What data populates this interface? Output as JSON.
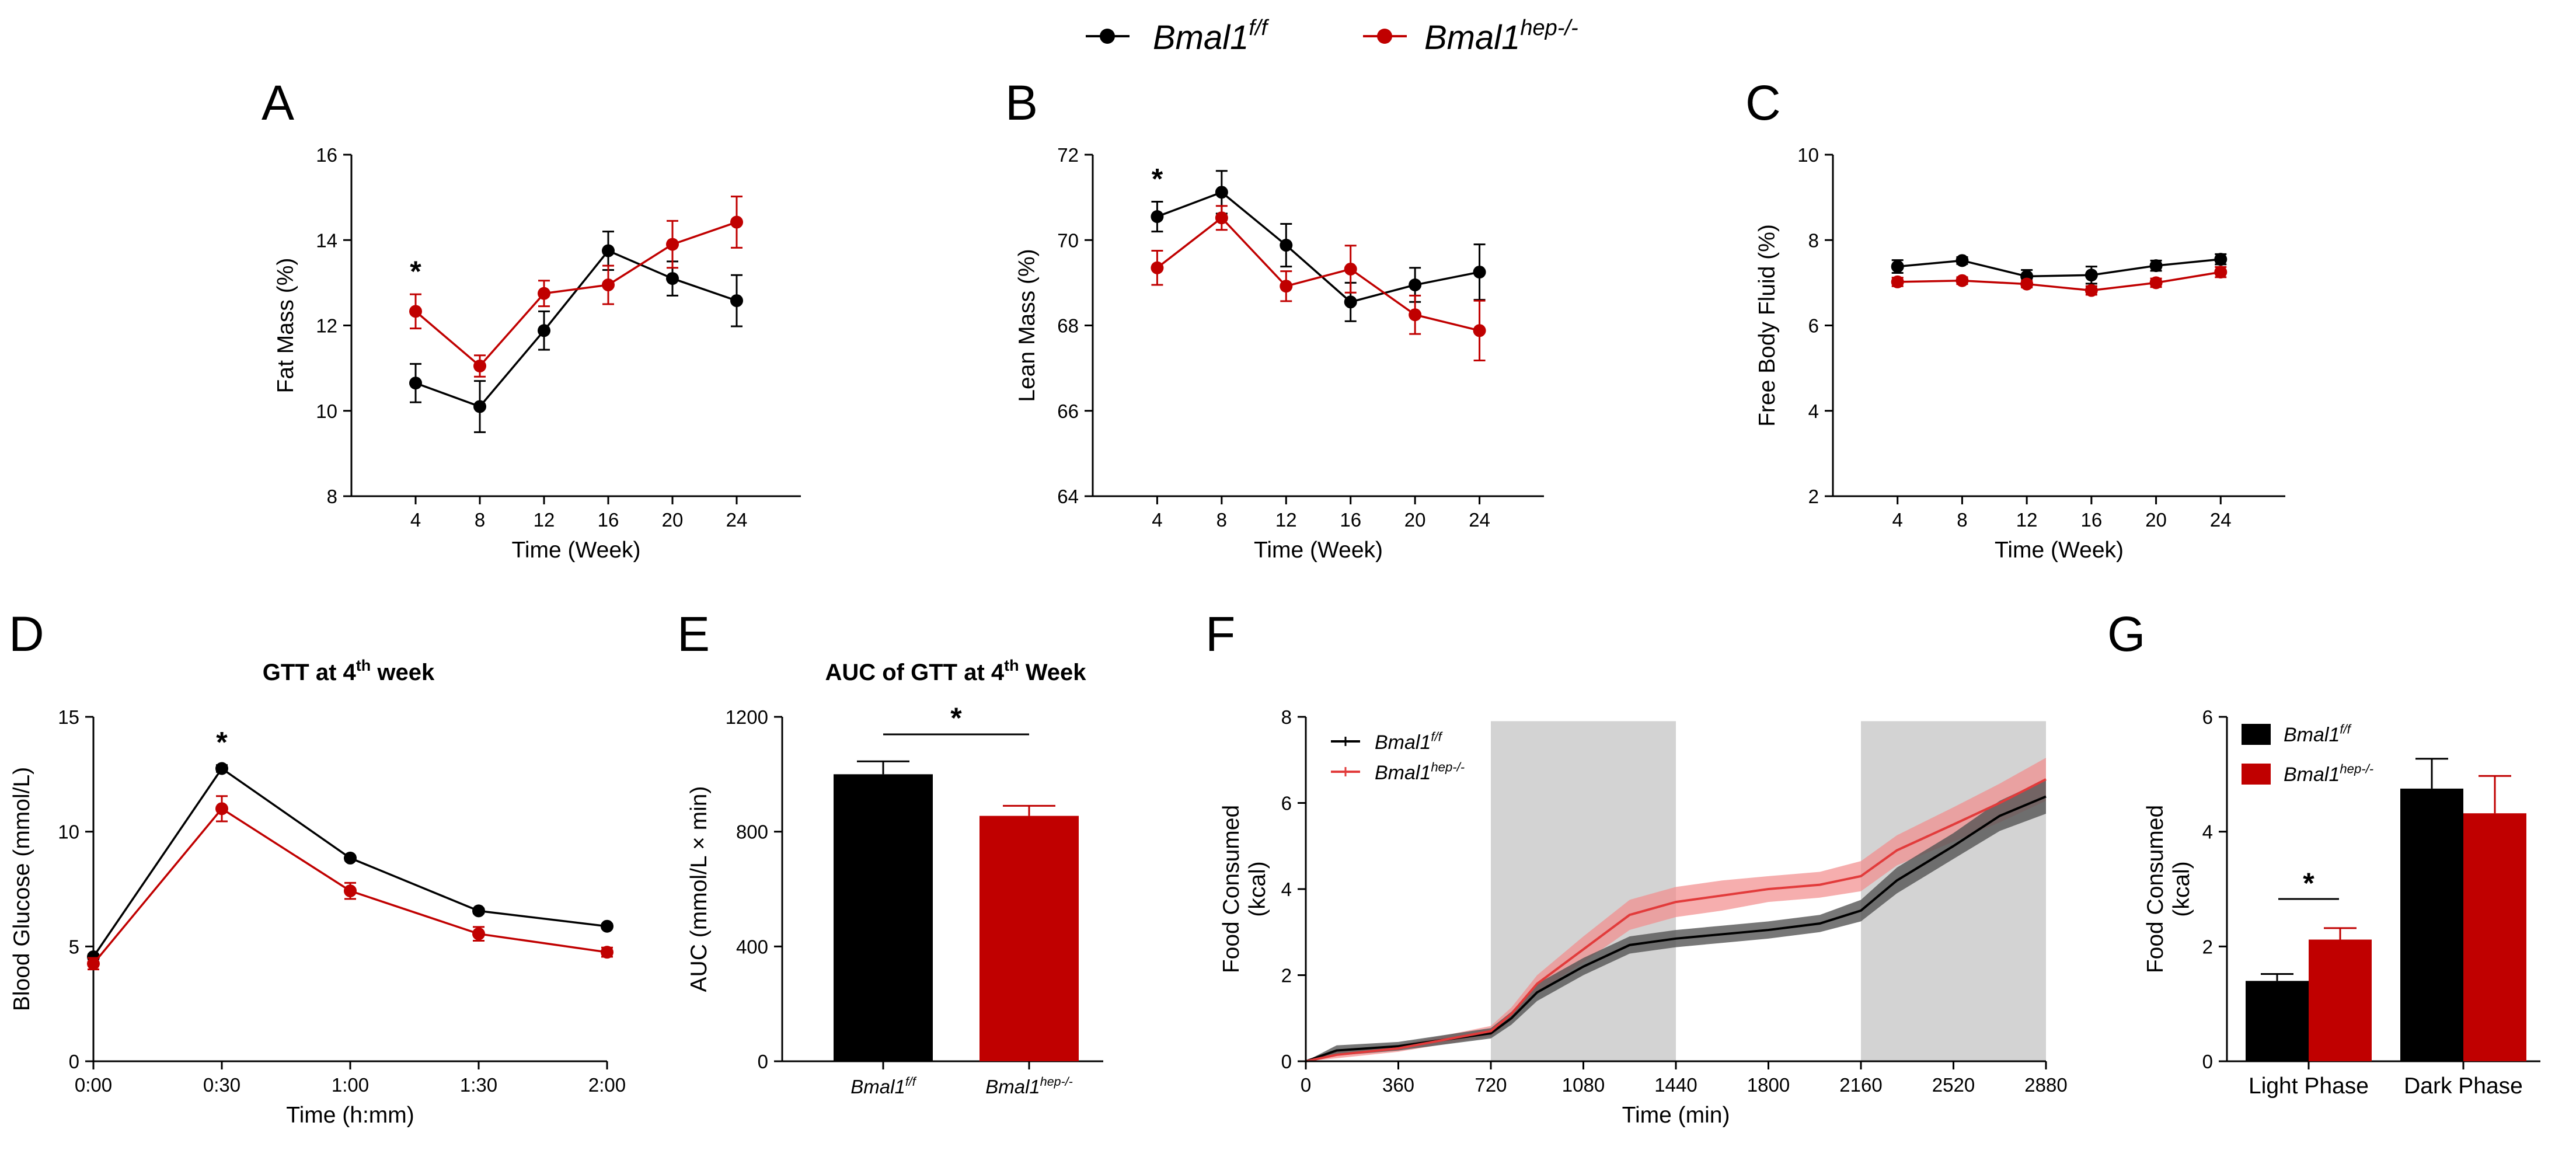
{
  "colors": {
    "wt": "#000000",
    "ko": "#c00000",
    "ko_band": "#f28c8c",
    "wt_band": "#555555",
    "dark_phase": "#d3d3d3"
  },
  "legend": {
    "wt": {
      "base": "Bmal1",
      "sup": "f/f"
    },
    "ko": {
      "base": "Bmal1",
      "sup": "hep-/-"
    }
  },
  "panels": {
    "A": {
      "letter": "A"
    },
    "B": {
      "letter": "B"
    },
    "C": {
      "letter": "C"
    },
    "D": {
      "letter": "D",
      "title_base": "GTT at 4",
      "title_sup": "th",
      "title_tail": " week"
    },
    "E": {
      "letter": "E",
      "title_base": "AUC of GTT at 4",
      "title_sup": "th",
      "title_tail": " Week"
    },
    "F": {
      "letter": "F"
    },
    "G": {
      "letter": "G"
    }
  },
  "chart_data": [
    {
      "id": "A",
      "type": "line",
      "xlabel": "Time (Week)",
      "ylabel": "Fat Mass (%)",
      "x": [
        4,
        8,
        12,
        16,
        20,
        24
      ],
      "xlim": [
        0,
        28
      ],
      "ylim": [
        8,
        16
      ],
      "yticks": [
        8,
        10,
        12,
        14,
        16
      ],
      "series": [
        {
          "name": "Bmal1f/f",
          "values": [
            10.65,
            10.1,
            11.88,
            13.75,
            13.1,
            12.58
          ],
          "err": [
            0.45,
            0.6,
            0.45,
            0.45,
            0.4,
            0.6
          ]
        },
        {
          "name": "Bmal1hep-/-",
          "values": [
            12.33,
            11.05,
            12.75,
            12.95,
            13.9,
            14.42
          ],
          "err": [
            0.4,
            0.25,
            0.3,
            0.45,
            0.55,
            0.6
          ]
        }
      ],
      "annotations": [
        {
          "text": "*",
          "x": 4
        }
      ]
    },
    {
      "id": "B",
      "type": "line",
      "xlabel": "Time (Week)",
      "ylabel": "Lean Mass (%)",
      "x": [
        4,
        8,
        12,
        16,
        20,
        24
      ],
      "xlim": [
        0,
        28
      ],
      "ylim": [
        64,
        72
      ],
      "yticks": [
        64,
        66,
        68,
        70,
        72
      ],
      "series": [
        {
          "name": "Bmal1f/f",
          "values": [
            70.55,
            71.12,
            69.88,
            68.55,
            68.95,
            69.25
          ],
          "err": [
            0.35,
            0.5,
            0.5,
            0.45,
            0.4,
            0.65
          ]
        },
        {
          "name": "Bmal1hep-/-",
          "values": [
            69.35,
            70.52,
            68.92,
            69.32,
            68.25,
            67.88
          ],
          "err": [
            0.4,
            0.28,
            0.35,
            0.55,
            0.45,
            0.7
          ]
        }
      ],
      "annotations": [
        {
          "text": "*",
          "x": 4
        }
      ]
    },
    {
      "id": "C",
      "type": "line",
      "xlabel": "Time (Week)",
      "ylabel": "Free Body Fluid (%)",
      "x": [
        4,
        8,
        12,
        16,
        20,
        24
      ],
      "xlim": [
        0,
        28
      ],
      "ylim": [
        2,
        10
      ],
      "yticks": [
        2,
        4,
        6,
        8,
        10
      ],
      "series": [
        {
          "name": "Bmal1f/f",
          "values": [
            7.38,
            7.52,
            7.15,
            7.18,
            7.4,
            7.55
          ],
          "err": [
            0.15,
            0.08,
            0.15,
            0.2,
            0.12,
            0.12
          ]
        },
        {
          "name": "Bmal1hep-/-",
          "values": [
            7.02,
            7.05,
            6.97,
            6.82,
            7.0,
            7.25
          ],
          "err": [
            0.1,
            0.08,
            0.08,
            0.1,
            0.1,
            0.12
          ]
        }
      ]
    },
    {
      "id": "D",
      "type": "line",
      "title": "GTT at 4th week",
      "xlabel": "Time (h:mm)",
      "ylabel": "Blood Glucose (mmol/L)",
      "x": [
        0,
        30,
        60,
        90,
        120
      ],
      "xticklabels": [
        "0:00",
        "0:30",
        "1:00",
        "1:30",
        "2:00"
      ],
      "xlim": [
        0,
        120
      ],
      "ylim": [
        0,
        15
      ],
      "yticks": [
        0,
        5,
        10,
        15
      ],
      "series": [
        {
          "name": "Bmal1f/f",
          "values": [
            4.55,
            12.75,
            8.85,
            6.55,
            5.88
          ],
          "err": [
            0.1,
            0.15,
            0.1,
            0.1,
            0.1
          ]
        },
        {
          "name": "Bmal1hep-/-",
          "values": [
            4.25,
            11.0,
            7.42,
            5.55,
            4.75
          ],
          "err": [
            0.25,
            0.55,
            0.35,
            0.3,
            0.2
          ]
        }
      ],
      "annotations": [
        {
          "text": "*",
          "x": 30
        }
      ]
    },
    {
      "id": "E",
      "type": "bar",
      "title": "AUC of GTT at 4th Week",
      "ylabel": "AUC (mmol/L × min)",
      "categories": [
        "Bmal1f/f",
        "Bmal1hep-/-"
      ],
      "values": [
        1000,
        855
      ],
      "err": [
        45,
        35
      ],
      "ylim": [
        0,
        1200
      ],
      "yticks": [
        0,
        400,
        800,
        1200
      ],
      "annotations": [
        {
          "text": "*",
          "between": [
            0,
            1
          ]
        }
      ]
    },
    {
      "id": "F",
      "type": "area",
      "xlabel": "Time (min)",
      "ylabel": "Food Consumed (kcal)",
      "xlim": [
        0,
        2880
      ],
      "ylim": [
        0,
        8
      ],
      "xticks": [
        0,
        360,
        720,
        1080,
        1440,
        1800,
        2160,
        2520,
        2880
      ],
      "yticks": [
        0,
        2,
        4,
        6,
        8
      ],
      "dark_phases": [
        [
          720,
          1440
        ],
        [
          2160,
          2880
        ]
      ],
      "series": [
        {
          "name": "Bmal1f/f",
          "x": [
            0,
            120,
            360,
            720,
            800,
            900,
            1080,
            1260,
            1440,
            1620,
            1800,
            2000,
            2160,
            2300,
            2520,
            2700,
            2880
          ],
          "values": [
            0,
            0.25,
            0.35,
            0.65,
            1.0,
            1.6,
            2.2,
            2.7,
            2.85,
            2.95,
            3.05,
            3.2,
            3.5,
            4.2,
            5.0,
            5.7,
            6.15
          ],
          "err": [
            0,
            0.12,
            0.1,
            0.12,
            0.15,
            0.2,
            0.2,
            0.2,
            0.2,
            0.2,
            0.2,
            0.2,
            0.25,
            0.3,
            0.3,
            0.35,
            0.4
          ]
        },
        {
          "name": "Bmal1hep-/-",
          "x": [
            0,
            120,
            360,
            720,
            800,
            900,
            1080,
            1260,
            1440,
            1620,
            1800,
            2000,
            2160,
            2300,
            2520,
            2700,
            2880
          ],
          "values": [
            0,
            0.15,
            0.3,
            0.7,
            1.1,
            1.8,
            2.6,
            3.4,
            3.7,
            3.85,
            4.0,
            4.1,
            4.3,
            4.9,
            5.5,
            6.0,
            6.55
          ],
          "err": [
            0,
            0.08,
            0.08,
            0.12,
            0.15,
            0.2,
            0.3,
            0.35,
            0.35,
            0.35,
            0.3,
            0.3,
            0.35,
            0.35,
            0.4,
            0.45,
            0.5
          ]
        }
      ],
      "legend": [
        {
          "base": "Bmal1",
          "sup": "f/f"
        },
        {
          "base": "Bmal1",
          "sup": "hep-/-"
        }
      ]
    },
    {
      "id": "G",
      "type": "bar",
      "ylabel": "Food Consumed (kcal)",
      "categories": [
        "Light Phase",
        "Dark Phase"
      ],
      "series": [
        {
          "name": "Bmal1f/f",
          "values": [
            1.4,
            4.75
          ],
          "err": [
            0.12,
            0.52
          ]
        },
        {
          "name": "Bmal1hep-/-",
          "values": [
            2.12,
            4.32
          ],
          "err": [
            0.2,
            0.65
          ]
        }
      ],
      "ylim": [
        0,
        6
      ],
      "yticks": [
        0,
        2,
        4,
        6
      ],
      "annotations": [
        {
          "text": "*",
          "category": "Light Phase"
        }
      ],
      "legend": [
        {
          "base": "Bmal1",
          "sup": "f/f"
        },
        {
          "base": "Bmal1",
          "sup": "hep-/-"
        }
      ]
    }
  ]
}
